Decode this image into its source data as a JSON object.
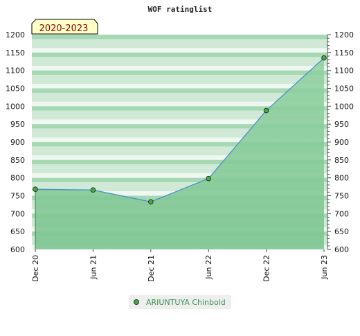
{
  "chart_data": {
    "type": "area",
    "title": "WOF ratinglist",
    "period_label": "2020-2023",
    "xlabel": "",
    "ylabel": "",
    "ylim": [
      600,
      1200
    ],
    "y_ticks": [
      600,
      650,
      700,
      750,
      800,
      850,
      900,
      950,
      1000,
      1050,
      1100,
      1150,
      1200
    ],
    "x_ticks": [
      "Dec 20",
      "Jun 21",
      "Dec 21",
      "Jun 22",
      "Dec 22",
      "Jun 23"
    ],
    "grid": true,
    "legend_position": "bottom-center",
    "series": [
      {
        "name": "ARIUNTUYA Chinbold",
        "color": "#4ea84e",
        "line_color": "#4a90c8",
        "points": [
          {
            "x": "Dec 20",
            "y": 768
          },
          {
            "x": "Jun 21",
            "y": 766
          },
          {
            "x": "Dec 21",
            "y": 733
          },
          {
            "x": "Jun 22",
            "y": 798
          },
          {
            "x": "Dec 22",
            "y": 988
          },
          {
            "x": "Jun 23",
            "y": 1135
          }
        ]
      }
    ],
    "colors": {
      "band_light": "#eef7f0",
      "band_mid": "#cfe9d6",
      "band_dark": "#a6d8b3",
      "fill_top": "#8fd0a0",
      "fill_bottom": "#7cc590",
      "badge_bg": "#ffffc8",
      "badge_text": "#8b0000"
    }
  }
}
